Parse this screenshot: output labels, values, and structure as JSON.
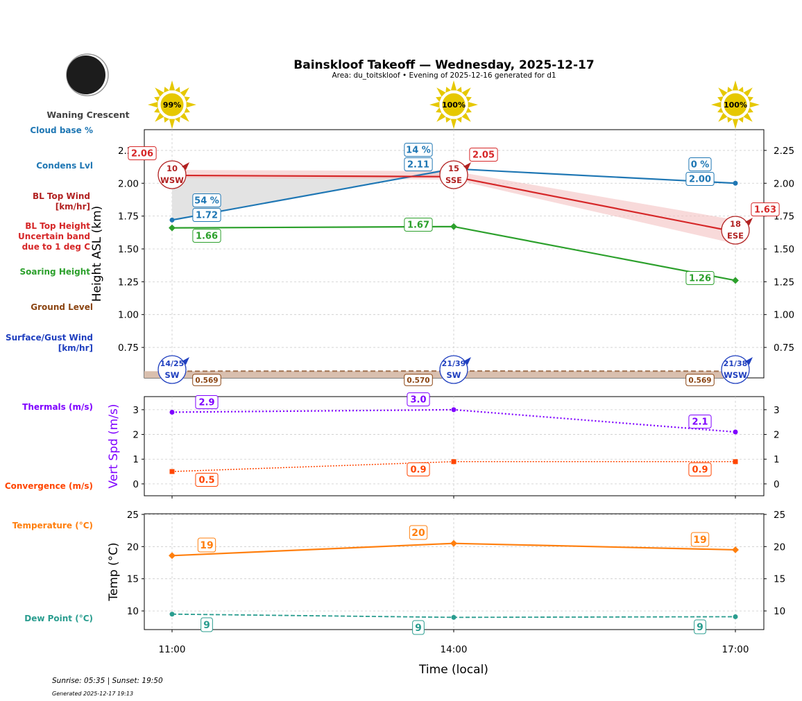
{
  "title": "Bainskloof Takeoff — Wednesday, 2025-12-17",
  "subtitle": "Area: du_toitskloof • Evening of 2025-12-16 generated for d1",
  "moon_phase": "Waning Crescent",
  "footer": {
    "sun": "Sunrise: 05:35 | Sunset: 19:50",
    "generated": "Generated 2025-12-17 19:13"
  },
  "chart_data": [
    {
      "type": "line",
      "ylabel": "Height ASL (km)",
      "x": [
        "11:00",
        "14:00",
        "17:00"
      ],
      "ylim": [
        0.518,
        2.408
      ],
      "yticks": [
        "0.75",
        "1.00",
        "1.25",
        "1.50",
        "1.75",
        "2.00",
        "2.25"
      ],
      "grid": true,
      "sun_percent": [
        "99%",
        "100%",
        "100%"
      ],
      "side_labels": {
        "cloud_pct": "Cloud base %",
        "condens": "Condens Lvl",
        "bl_wind": "BL Top Wind\n[km/hr]",
        "bl_top": "BL Top Height\nUncertain band\ndue to 1 deg C",
        "soaring": "Soaring Height",
        "ground": "Ground Level",
        "surface_wind": "Surface/Gust Wind\n[km/hr]"
      },
      "series": {
        "condens_lvl": {
          "values": [
            1.72,
            2.11,
            2.0
          ],
          "labels": [
            "1.72",
            "2.11",
            "2.00"
          ],
          "cloud_pct": [
            "54 %",
            "14 %",
            "0 %"
          ],
          "color": "#1f77b4"
        },
        "bl_top": {
          "values": [
            2.06,
            2.05,
            1.63
          ],
          "labels": [
            "2.06",
            "2.05",
            "1.63"
          ],
          "band": 0.07,
          "color": "#d62728"
        },
        "soaring": {
          "values": [
            1.66,
            1.67,
            1.26
          ],
          "labels": [
            "1.66",
            "1.67",
            "1.26"
          ],
          "color": "#2ca02c"
        },
        "ground": {
          "values": [
            0.569,
            0.57,
            0.569
          ],
          "labels": [
            "0.569",
            "0.570",
            "0.569"
          ],
          "color": "#8b4513"
        }
      },
      "bl_wind": [
        {
          "speed": "10",
          "dir": "WSW"
        },
        {
          "speed": "15",
          "dir": "SSE"
        },
        {
          "speed": "18",
          "dir": "ESE"
        }
      ],
      "surface_wind": [
        {
          "speed": "14/25",
          "dir": "SW"
        },
        {
          "speed": "21/39",
          "dir": "SW"
        },
        {
          "speed": "21/38",
          "dir": "WSW"
        }
      ]
    },
    {
      "type": "line",
      "ylabel": "Vert Spd (m/s)",
      "ylim": [
        -0.48,
        3.53
      ],
      "yticks": [
        "0",
        "1",
        "2",
        "3"
      ],
      "series": [
        {
          "name": "Thermals (m/s)",
          "values": [
            2.9,
            3.0,
            2.1
          ],
          "labels": [
            "2.9",
            "3.0",
            "2.1"
          ],
          "color": "#7f00ff"
        },
        {
          "name": "Convergence (m/s)",
          "values": [
            0.5,
            0.9,
            0.9
          ],
          "labels": [
            "0.5",
            "0.9",
            "0.9"
          ],
          "color": "#ff4500"
        }
      ]
    },
    {
      "type": "line",
      "ylabel": "Temp (°C)",
      "xlabel": "Time (local)",
      "ylim": [
        7.1,
        25.1
      ],
      "yticks": [
        "10",
        "15",
        "20",
        "25"
      ],
      "series": [
        {
          "name": "Temperature (°C)",
          "values": [
            18.6,
            20.5,
            19.5
          ],
          "labels": [
            "19",
            "20",
            "19"
          ],
          "color": "#ff7f0e"
        },
        {
          "name": "Dew Point (°C)",
          "values": [
            9.5,
            9.0,
            9.1
          ],
          "labels": [
            "9",
            "9",
            "9"
          ],
          "color": "#2a9d8f"
        }
      ]
    }
  ]
}
